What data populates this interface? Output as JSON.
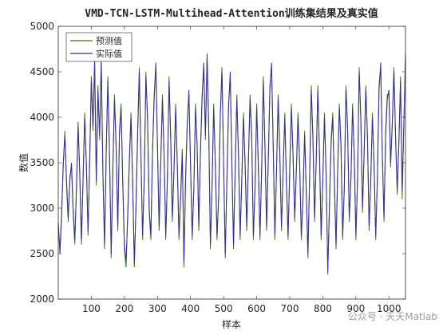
{
  "chart_data": {
    "type": "line",
    "title": "VMD-TCN-LSTM-Multihead-Attention训练集结果及真实值",
    "x_label": "样本",
    "y_label": "数值",
    "xlim": [
      0,
      1050
    ],
    "ylim": [
      2000,
      5000
    ],
    "xticks": [
      100,
      200,
      300,
      400,
      500,
      600,
      700,
      800,
      900,
      1000
    ],
    "yticks": [
      2000,
      2500,
      3000,
      3500,
      4000,
      4500,
      5000
    ],
    "legend_position": "upper-left",
    "x": [
      0,
      5,
      10,
      15,
      20,
      25,
      30,
      35,
      40,
      45,
      50,
      55,
      60,
      65,
      70,
      75,
      80,
      85,
      90,
      95,
      100,
      105,
      110,
      115,
      120,
      125,
      130,
      135,
      140,
      145,
      150,
      155,
      160,
      165,
      170,
      175,
      180,
      185,
      190,
      195,
      200,
      205,
      210,
      215,
      220,
      225,
      230,
      235,
      240,
      245,
      250,
      255,
      260,
      265,
      270,
      275,
      280,
      285,
      290,
      295,
      300,
      305,
      310,
      315,
      320,
      325,
      330,
      335,
      340,
      345,
      350,
      355,
      360,
      365,
      370,
      375,
      380,
      385,
      390,
      395,
      400,
      405,
      410,
      415,
      420,
      425,
      430,
      435,
      440,
      445,
      450,
      455,
      460,
      465,
      470,
      475,
      480,
      485,
      490,
      495,
      500,
      505,
      510,
      515,
      520,
      525,
      530,
      535,
      540,
      545,
      550,
      555,
      560,
      565,
      570,
      575,
      580,
      585,
      590,
      595,
      600,
      605,
      610,
      615,
      620,
      625,
      630,
      635,
      640,
      645,
      650,
      655,
      660,
      665,
      670,
      675,
      680,
      685,
      690,
      695,
      700,
      705,
      710,
      715,
      720,
      725,
      730,
      735,
      740,
      745,
      750,
      755,
      760,
      765,
      770,
      775,
      780,
      785,
      790,
      795,
      800,
      805,
      810,
      815,
      820,
      825,
      830,
      835,
      840,
      845,
      850,
      855,
      860,
      865,
      870,
      875,
      880,
      885,
      890,
      895,
      900,
      905,
      910,
      915,
      920,
      925,
      930,
      935,
      940,
      945,
      950,
      955,
      960,
      965,
      970,
      975,
      980,
      985,
      990,
      995,
      1000,
      1005,
      1010,
      1015,
      1020,
      1025,
      1030,
      1035,
      1040,
      1045,
      1050
    ],
    "series": [
      {
        "name": "预测值",
        "color": "#3d7c00",
        "values": [
          2800,
          2550,
          2950,
          3450,
          3850,
          3250,
          2850,
          3350,
          3450,
          2950,
          2600,
          3250,
          3950,
          3350,
          2600,
          3350,
          4050,
          3450,
          2700,
          3550,
          4450,
          3850,
          4600,
          3250,
          4350,
          3750,
          4650,
          3350,
          2550,
          3650,
          4450,
          3550,
          2450,
          3450,
          4250,
          3650,
          2750,
          3850,
          4150,
          3250,
          2550,
          2350,
          2950,
          3550,
          4050,
          3250,
          2350,
          3050,
          3850,
          4550,
          3550,
          2650,
          3350,
          4500,
          3950,
          2950,
          2650,
          3650,
          4250,
          4550,
          3650,
          2750,
          3550,
          4250,
          3550,
          2650,
          3350,
          4450,
          3750,
          2850,
          3450,
          4150,
          3450,
          2650,
          3150,
          3650,
          2350,
          3350,
          3950,
          4250,
          3450,
          2650,
          3250,
          4150,
          3650,
          2750,
          3650,
          4250,
          4550,
          3750,
          4650,
          3850,
          2550,
          3250,
          4150,
          3450,
          2650,
          3150,
          4050,
          4550,
          3450,
          2450,
          3350,
          4150,
          4450,
          3450,
          2550,
          3450,
          4250,
          3550,
          2650,
          3350,
          4050,
          3450,
          2750,
          3550,
          4250,
          3750,
          2650,
          3250,
          4150,
          3450,
          2650,
          3450,
          4450,
          3650,
          2750,
          3550,
          4350,
          4550,
          3650,
          2650,
          3450,
          4250,
          3550,
          2750,
          3450,
          4050,
          3250,
          2650,
          3450,
          4150,
          3550,
          2850,
          3450,
          4050,
          3450,
          2650,
          3150,
          3850,
          3150,
          2450,
          3350,
          4350,
          3750,
          2850,
          3550,
          4350,
          3550,
          2650,
          3350,
          4050,
          3350,
          2270,
          3050,
          3750,
          4050,
          3250,
          2550,
          3450,
          4150,
          3650,
          2650,
          3250,
          4350,
          3850,
          2850,
          3350,
          4150,
          3550,
          2650,
          3350,
          4550,
          3950,
          2950,
          3650,
          4350,
          3750,
          2750,
          3350,
          4050,
          3450,
          2650,
          3350,
          4350,
          4550,
          3550,
          2850,
          3850,
          4250,
          4250,
          3450,
          3950,
          4550,
          3750,
          3150,
          3750,
          4450,
          3100,
          3950,
          4650
        ]
      },
      {
        "name": "实际值",
        "color": "#3b2c9e",
        "values": [
          2850,
          2500,
          2900,
          3500,
          3800,
          3300,
          2900,
          3300,
          3500,
          3000,
          2650,
          3200,
          3900,
          3400,
          2650,
          3300,
          4000,
          3500,
          2750,
          3500,
          4400,
          3900,
          4650,
          3300,
          4300,
          3800,
          4600,
          3400,
          2600,
          3600,
          4400,
          3600,
          2500,
          3400,
          4200,
          3700,
          2800,
          3800,
          4100,
          3300,
          2600,
          2400,
          2900,
          3500,
          4000,
          3300,
          2400,
          3000,
          3800,
          4500,
          3600,
          2700,
          3300,
          4450,
          4000,
          3000,
          2700,
          3600,
          4200,
          4600,
          3700,
          2800,
          3500,
          4200,
          3600,
          2700,
          3300,
          4400,
          3800,
          2900,
          3400,
          4100,
          3500,
          2700,
          3100,
          3600,
          2400,
          3300,
          3900,
          4300,
          3500,
          2700,
          3200,
          4100,
          3700,
          2800,
          3600,
          4200,
          4600,
          3800,
          4700,
          3900,
          2600,
          3200,
          4100,
          3500,
          2700,
          3100,
          4000,
          4500,
          3500,
          2500,
          3300,
          4100,
          4500,
          3500,
          2600,
          3400,
          4200,
          3600,
          2700,
          3300,
          4000,
          3500,
          2800,
          3500,
          4200,
          3800,
          2700,
          3200,
          4100,
          3500,
          2700,
          3400,
          4400,
          3700,
          2800,
          3500,
          4300,
          4600,
          3700,
          2700,
          3400,
          4200,
          3600,
          2800,
          3400,
          4000,
          3300,
          2700,
          3400,
          4100,
          3600,
          2900,
          3400,
          4000,
          3500,
          2700,
          3100,
          3800,
          3200,
          2500,
          3300,
          4300,
          3800,
          2900,
          3500,
          4300,
          3600,
          2700,
          3300,
          4000,
          3400,
          2300,
          3000,
          3700,
          4000,
          3300,
          2600,
          3400,
          4100,
          3700,
          2700,
          3200,
          4300,
          3900,
          2900,
          3300,
          4100,
          3600,
          2700,
          3300,
          4500,
          4000,
          3000,
          3600,
          4300,
          3800,
          2800,
          3300,
          4000,
          3500,
          2700,
          3300,
          4300,
          4600,
          3600,
          2900,
          3800,
          4200,
          4300,
          3500,
          3900,
          4500,
          3800,
          3200,
          3700,
          4400,
          3200,
          3900,
          4700
        ]
      }
    ]
  },
  "watermark": "公众号 · 天天Matlab"
}
